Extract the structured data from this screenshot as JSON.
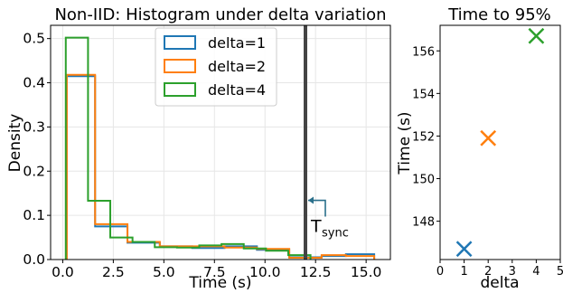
{
  "chart_data": [
    {
      "type": "histogram",
      "title": "Non-IID: Histogram under delta variation",
      "xlabel": "Time (s)",
      "ylabel": "Density",
      "xlim": [
        -0.6,
        16.2
      ],
      "ylim": [
        0,
        0.53
      ],
      "xticks": [
        0.0,
        2.5,
        5.0,
        7.5,
        10.0,
        12.5,
        15.0
      ],
      "xtick_labels": [
        "0.0",
        "2.5",
        "5.0",
        "7.5",
        "10.0",
        "12.5",
        "15.0"
      ],
      "yticks": [
        0.0,
        0.1,
        0.2,
        0.3,
        0.4,
        0.5
      ],
      "ytick_labels": [
        "0.0",
        "0.1",
        "0.2",
        "0.3",
        "0.4",
        "0.5"
      ],
      "grid": true,
      "legend_position": "top-center",
      "series": [
        {
          "name": "delta=1",
          "color": "#1f77b4",
          "bin_edges": [
            0.2,
            1.6,
            3.2,
            4.8,
            6.4,
            8.0,
            9.6,
            11.2,
            12.8,
            14.0,
            15.4
          ],
          "values": [
            0.415,
            0.075,
            0.038,
            0.03,
            0.026,
            0.03,
            0.022,
            0.005,
            0.008,
            0.012
          ]
        },
        {
          "name": "delta=2",
          "color": "#ff7f0e",
          "bin_edges": [
            0.2,
            1.6,
            3.2,
            4.8,
            6.4,
            8.0,
            9.6,
            11.2,
            12.8,
            14.0,
            15.4
          ],
          "values": [
            0.418,
            0.08,
            0.04,
            0.03,
            0.03,
            0.027,
            0.024,
            0.004,
            0.01,
            0.008
          ]
        },
        {
          "name": "delta=4",
          "color": "#2ca02c",
          "bin_edges": [
            0.15,
            1.25,
            2.35,
            3.45,
            4.55,
            5.65,
            6.75,
            7.85,
            8.95,
            10.05,
            11.15,
            12.25
          ],
          "values": [
            0.502,
            0.133,
            0.05,
            0.04,
            0.028,
            0.027,
            0.032,
            0.035,
            0.025,
            0.02,
            0.01
          ]
        }
      ],
      "vline": {
        "x": 12.0,
        "color": "#444444",
        "label": "T",
        "label_sub": "sync",
        "label_y": 0.093
      }
    },
    {
      "type": "scatter",
      "title": "Time to 95%",
      "xlabel": "delta",
      "ylabel": "Time (s)",
      "xlim": [
        0,
        5
      ],
      "ylim": [
        146.2,
        157.2
      ],
      "xticks": [
        0,
        1,
        2,
        3,
        4,
        5
      ],
      "xtick_labels": [
        "0",
        "1",
        "2",
        "3",
        "4",
        "5"
      ],
      "yticks": [
        148,
        150,
        152,
        154,
        156
      ],
      "ytick_labels": [
        "148",
        "150",
        "152",
        "154",
        "156"
      ],
      "grid": false,
      "points": [
        {
          "x": 1,
          "y": 146.7,
          "color": "#1f77b4"
        },
        {
          "x": 2,
          "y": 151.9,
          "color": "#ff7f0e"
        },
        {
          "x": 4,
          "y": 156.7,
          "color": "#2ca02c"
        }
      ]
    }
  ]
}
